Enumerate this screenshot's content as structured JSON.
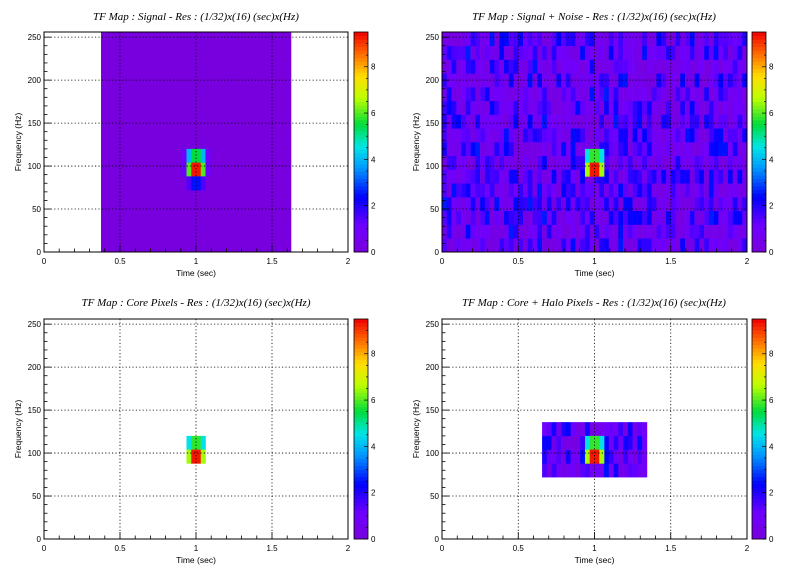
{
  "chart_data": [
    {
      "type": "heatmap",
      "title": "TF Map : Signal - Res : (1/32)x(16) (sec)x(Hz)",
      "xlabel": "Time (sec)",
      "ylabel": "Frequency (Hz)",
      "xlim": [
        0,
        2
      ],
      "ylim": [
        0,
        256
      ],
      "zlim": [
        0,
        9.5
      ],
      "x_ticks": [
        "0",
        "0.5",
        "1",
        "1.5",
        "2"
      ],
      "y_ticks": [
        "0",
        "50",
        "100",
        "150",
        "200",
        "250"
      ],
      "z_ticks": [
        "0",
        "2",
        "4",
        "6",
        "8"
      ],
      "grid": true,
      "bin_width_sec": 0.03125,
      "bin_height_hz": 16,
      "cells": [
        {
          "x0": 0.375,
          "x1": 1.625,
          "y0": 0,
          "y1": 256,
          "z": 0.05
        },
        {
          "x0": 0.90625,
          "x1": 0.9375,
          "y0": 104,
          "y1": 120,
          "z": 1.0
        },
        {
          "x0": 0.9375,
          "x1": 0.96875,
          "y0": 104,
          "y1": 120,
          "z": 4.0
        },
        {
          "x0": 0.96875,
          "x1": 1.0,
          "y0": 104,
          "y1": 120,
          "z": 5.5
        },
        {
          "x0": 1.0,
          "x1": 1.03125,
          "y0": 104,
          "y1": 120,
          "z": 5.5
        },
        {
          "x0": 1.03125,
          "x1": 1.0625,
          "y0": 104,
          "y1": 120,
          "z": 4.0
        },
        {
          "x0": 1.0625,
          "x1": 1.09375,
          "y0": 104,
          "y1": 120,
          "z": 1.0
        },
        {
          "x0": 0.90625,
          "x1": 0.9375,
          "y0": 88,
          "y1": 104,
          "z": 1.2
        },
        {
          "x0": 0.9375,
          "x1": 0.96875,
          "y0": 88,
          "y1": 104,
          "z": 6.0
        },
        {
          "x0": 0.96875,
          "x1": 1.0,
          "y0": 88,
          "y1": 104,
          "z": 9.3
        },
        {
          "x0": 1.0,
          "x1": 1.03125,
          "y0": 88,
          "y1": 104,
          "z": 9.3
        },
        {
          "x0": 1.03125,
          "x1": 1.0625,
          "y0": 88,
          "y1": 104,
          "z": 6.0
        },
        {
          "x0": 1.0625,
          "x1": 1.09375,
          "y0": 88,
          "y1": 104,
          "z": 1.2
        },
        {
          "x0": 0.9375,
          "x1": 0.96875,
          "y0": 72,
          "y1": 88,
          "z": 1.5
        },
        {
          "x0": 0.96875,
          "x1": 1.0,
          "y0": 72,
          "y1": 88,
          "z": 2.5
        },
        {
          "x0": 1.0,
          "x1": 1.03125,
          "y0": 72,
          "y1": 88,
          "z": 2.5
        },
        {
          "x0": 1.03125,
          "x1": 1.0625,
          "y0": 72,
          "y1": 88,
          "z": 1.5
        }
      ]
    },
    {
      "type": "heatmap",
      "title": "TF Map : Signal + Noise - Res : (1/32)x(16) (sec)x(Hz)",
      "xlabel": "Time (sec)",
      "ylabel": "Frequency (Hz)",
      "xlim": [
        0,
        2
      ],
      "ylim": [
        0,
        256
      ],
      "zlim": [
        0,
        9.5
      ],
      "x_ticks": [
        "0",
        "0.5",
        "1",
        "1.5",
        "2"
      ],
      "y_ticks": [
        "0",
        "50",
        "100",
        "150",
        "200",
        "250"
      ],
      "z_ticks": [
        "0",
        "2",
        "4",
        "6",
        "8"
      ],
      "grid": true,
      "bin_width_sec": 0.03125,
      "bin_height_hz": 16,
      "noise_floor": [
        0.2,
        2.6
      ],
      "cells": [
        {
          "x0": 0.9375,
          "x1": 0.96875,
          "y0": 104,
          "y1": 120,
          "z": 4.5
        },
        {
          "x0": 0.96875,
          "x1": 1.0,
          "y0": 104,
          "y1": 120,
          "z": 5.8
        },
        {
          "x0": 1.0,
          "x1": 1.03125,
          "y0": 104,
          "y1": 120,
          "z": 5.8
        },
        {
          "x0": 1.03125,
          "x1": 1.0625,
          "y0": 104,
          "y1": 120,
          "z": 4.5
        },
        {
          "x0": 0.9375,
          "x1": 0.96875,
          "y0": 88,
          "y1": 104,
          "z": 6.5
        },
        {
          "x0": 0.96875,
          "x1": 1.0,
          "y0": 88,
          "y1": 104,
          "z": 9.3
        },
        {
          "x0": 1.0,
          "x1": 1.03125,
          "y0": 88,
          "y1": 104,
          "z": 9.3
        },
        {
          "x0": 1.03125,
          "x1": 1.0625,
          "y0": 88,
          "y1": 104,
          "z": 6.5
        }
      ]
    },
    {
      "type": "heatmap",
      "title": "TF Map : Core Pixels - Res : (1/32)x(16) (sec)x(Hz)",
      "xlabel": "Time (sec)",
      "ylabel": "Frequency (Hz)",
      "xlim": [
        0,
        2
      ],
      "ylim": [
        0,
        256
      ],
      "zlim": [
        0,
        9.5
      ],
      "x_ticks": [
        "0",
        "0.5",
        "1",
        "1.5",
        "2"
      ],
      "y_ticks": [
        "0",
        "50",
        "100",
        "150",
        "200",
        "250"
      ],
      "z_ticks": [
        "0",
        "2",
        "4",
        "6",
        "8"
      ],
      "grid": true,
      "bin_width_sec": 0.03125,
      "bin_height_hz": 16,
      "cells": [
        {
          "x0": 0.9375,
          "x1": 0.96875,
          "y0": 104,
          "y1": 120,
          "z": 4.5
        },
        {
          "x0": 0.96875,
          "x1": 1.0,
          "y0": 104,
          "y1": 120,
          "z": 5.8
        },
        {
          "x0": 1.0,
          "x1": 1.03125,
          "y0": 104,
          "y1": 120,
          "z": 5.8
        },
        {
          "x0": 1.03125,
          "x1": 1.0625,
          "y0": 104,
          "y1": 120,
          "z": 4.5
        },
        {
          "x0": 0.9375,
          "x1": 0.96875,
          "y0": 88,
          "y1": 104,
          "z": 6.5
        },
        {
          "x0": 0.96875,
          "x1": 1.0,
          "y0": 88,
          "y1": 104,
          "z": 9.3
        },
        {
          "x0": 1.0,
          "x1": 1.03125,
          "y0": 88,
          "y1": 104,
          "z": 9.3
        },
        {
          "x0": 1.03125,
          "x1": 1.0625,
          "y0": 88,
          "y1": 104,
          "z": 6.5
        }
      ]
    },
    {
      "type": "heatmap",
      "title": "TF Map : Core + Halo Pixels - Res : (1/32)x(16) (sec)x(Hz)",
      "xlabel": "Time (sec)",
      "ylabel": "Frequency (Hz)",
      "xlim": [
        0,
        2
      ],
      "ylim": [
        0,
        256
      ],
      "zlim": [
        0,
        9.5
      ],
      "x_ticks": [
        "0",
        "0.5",
        "1",
        "1.5",
        "2"
      ],
      "y_ticks": [
        "0",
        "50",
        "100",
        "150",
        "200",
        "250"
      ],
      "z_ticks": [
        "0",
        "2",
        "4",
        "6",
        "8"
      ],
      "grid": true,
      "bin_width_sec": 0.03125,
      "bin_height_hz": 16,
      "halo_region": {
        "x0": 0.65625,
        "x1": 1.34375,
        "y0": 72,
        "y1": 136,
        "z_range": [
          0.2,
          2.6
        ]
      },
      "cells": [
        {
          "x0": 0.9375,
          "x1": 0.96875,
          "y0": 104,
          "y1": 120,
          "z": 4.5
        },
        {
          "x0": 0.96875,
          "x1": 1.0,
          "y0": 104,
          "y1": 120,
          "z": 5.8
        },
        {
          "x0": 1.0,
          "x1": 1.03125,
          "y0": 104,
          "y1": 120,
          "z": 5.8
        },
        {
          "x0": 1.03125,
          "x1": 1.0625,
          "y0": 104,
          "y1": 120,
          "z": 4.5
        },
        {
          "x0": 0.9375,
          "x1": 0.96875,
          "y0": 88,
          "y1": 104,
          "z": 6.5
        },
        {
          "x0": 0.96875,
          "x1": 1.0,
          "y0": 88,
          "y1": 104,
          "z": 9.3
        },
        {
          "x0": 1.0,
          "x1": 1.03125,
          "y0": 88,
          "y1": 104,
          "z": 9.3
        },
        {
          "x0": 1.03125,
          "x1": 1.0625,
          "y0": 88,
          "y1": 104,
          "z": 6.5
        }
      ]
    }
  ]
}
